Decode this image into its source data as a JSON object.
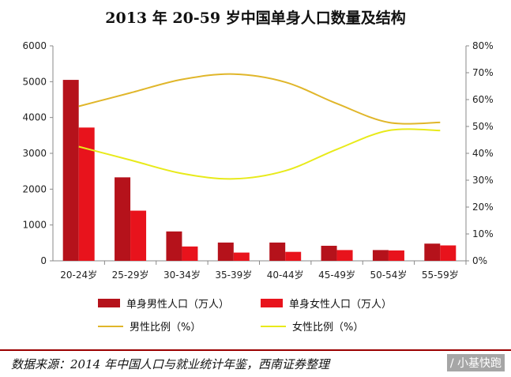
{
  "title": "2013 年 20-59 岁中国单身人口数量及结构",
  "chart_data": {
    "type": "bar",
    "title": "2013 年 20-59 岁中国单身人口数量及结构",
    "categories": [
      "20-24岁",
      "25-29岁",
      "30-34岁",
      "35-39岁",
      "40-44岁",
      "45-49岁",
      "50-54岁",
      "55-59岁"
    ],
    "series": [
      {
        "name": "单身男性人口（万人）",
        "type": "bar",
        "axis": "left",
        "color": "#b5121b",
        "values": [
          5050,
          2330,
          820,
          510,
          510,
          420,
          300,
          480
        ]
      },
      {
        "name": "单身女性人口（万人）",
        "type": "bar",
        "axis": "left",
        "color": "#e8131c",
        "values": [
          3720,
          1400,
          400,
          230,
          250,
          300,
          290,
          430
        ]
      },
      {
        "name": "男性比例（%）",
        "type": "line",
        "axis": "right",
        "color": "#e0b62a",
        "values": [
          57.5,
          62.5,
          67.5,
          69.5,
          66.5,
          58.5,
          51.5,
          51.5
        ]
      },
      {
        "name": "女性比例（%）",
        "type": "line",
        "axis": "right",
        "color": "#e8ea1a",
        "values": [
          42.5,
          37.5,
          32.5,
          30.5,
          33.5,
          41.5,
          48.5,
          48.5
        ]
      }
    ],
    "y_left": {
      "min": 0,
      "max": 6000,
      "ticks": [
        "0",
        "1000",
        "2000",
        "3000",
        "4000",
        "5000",
        "6000"
      ]
    },
    "y_right": {
      "min": 0,
      "max": 80,
      "ticks": [
        "0%",
        "10%",
        "20%",
        "30%",
        "40%",
        "50%",
        "60%",
        "70%",
        "80%"
      ]
    },
    "grid": false,
    "legend_position": "bottom"
  },
  "legend": {
    "male_count": "单身男性人口（万人）",
    "female_count": "单身女性人口（万人）",
    "male_ratio": "男性比例（%）",
    "female_ratio": "女性比例（%）"
  },
  "source": "数据来源：2014 年中国人口与就业统计年鉴，西南证券整理",
  "watermark": "/ 小基快跑"
}
